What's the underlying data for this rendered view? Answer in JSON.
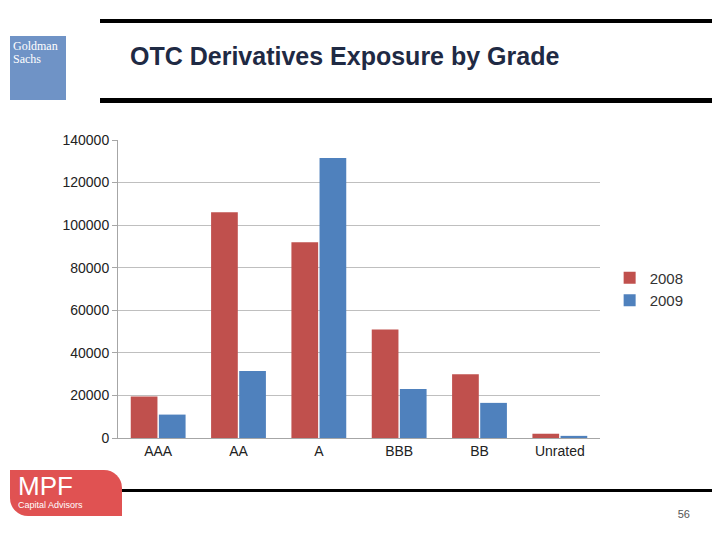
{
  "chart_data": {
    "type": "bar",
    "title": "OTC Derivatives Exposure by Grade",
    "categories": [
      "AAA",
      "AA",
      "A",
      "BBB",
      "BB",
      "Unrated"
    ],
    "series": [
      {
        "name": "2008",
        "color": "#c0504d",
        "values": [
          19500,
          106000,
          92000,
          51000,
          30000,
          2000
        ]
      },
      {
        "name": "2009",
        "color": "#4f81bd",
        "values": [
          11000,
          31500,
          131500,
          23000,
          16500,
          1000
        ]
      }
    ],
    "ylim": [
      0,
      140000
    ],
    "yticks": [
      0,
      20000,
      40000,
      60000,
      80000,
      100000,
      120000,
      140000
    ],
    "grid": true,
    "legend": "right"
  },
  "slide": {
    "logo": [
      "Goldman",
      "Sachs"
    ],
    "footer_logo": "MPF",
    "footer_subtitle": "Capital Advisors",
    "page_number": 56
  }
}
